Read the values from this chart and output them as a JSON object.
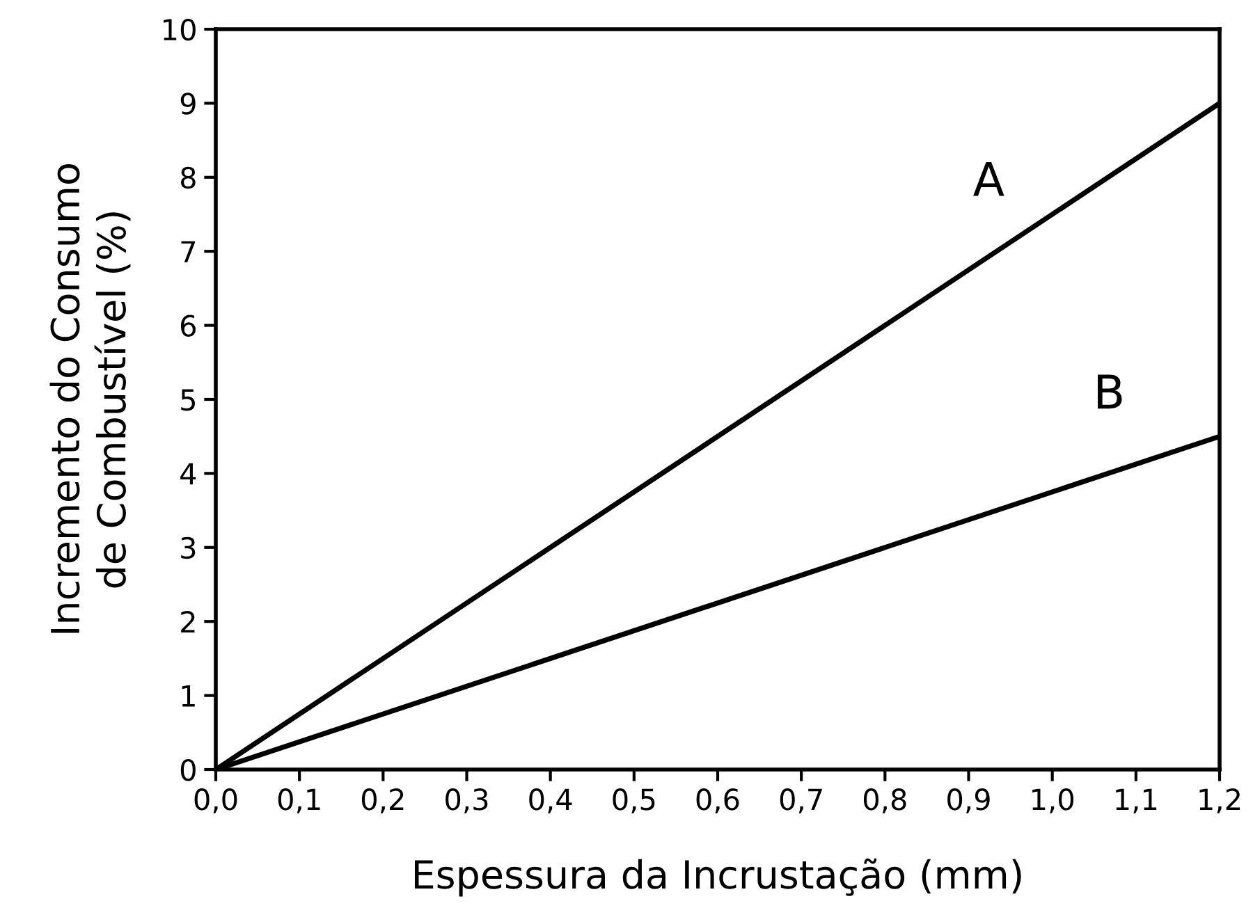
{
  "chart_data": {
    "type": "line",
    "xlabel": "Espessura da Incrustação (mm)",
    "ylabel": "Incremento do Consumo\nde Combustível (%)",
    "x": [
      0.0,
      1.2
    ],
    "series": [
      {
        "name": "A",
        "color": "#000000",
        "values": [
          0,
          9
        ]
      },
      {
        "name": "B",
        "color": "#000000",
        "values": [
          0,
          4.5
        ]
      }
    ],
    "xlim": [
      0.0,
      1.2
    ],
    "xticks": [
      {
        "value": 0.0,
        "label": "0,0"
      },
      {
        "value": 0.1,
        "label": "0,1"
      },
      {
        "value": 0.2,
        "label": "0,2"
      },
      {
        "value": 0.3,
        "label": "0,3"
      },
      {
        "value": 0.4,
        "label": "0,4"
      },
      {
        "value": 0.5,
        "label": "0,5"
      },
      {
        "value": 0.6,
        "label": "0,6"
      },
      {
        "value": 0.7,
        "label": "0,7"
      },
      {
        "value": 0.8,
        "label": "0,8"
      },
      {
        "value": 0.9,
        "label": "0,9"
      },
      {
        "value": 1.0,
        "label": "1,0"
      },
      {
        "value": 1.1,
        "label": "1,1"
      },
      {
        "value": 1.2,
        "label": "1,2"
      }
    ],
    "ylim": [
      0,
      10
    ],
    "yticks": [
      0,
      1,
      2,
      3,
      4,
      5,
      6,
      7,
      8,
      9,
      10
    ],
    "grid": false,
    "legend": false,
    "marker": "none",
    "line_style": "solid"
  }
}
